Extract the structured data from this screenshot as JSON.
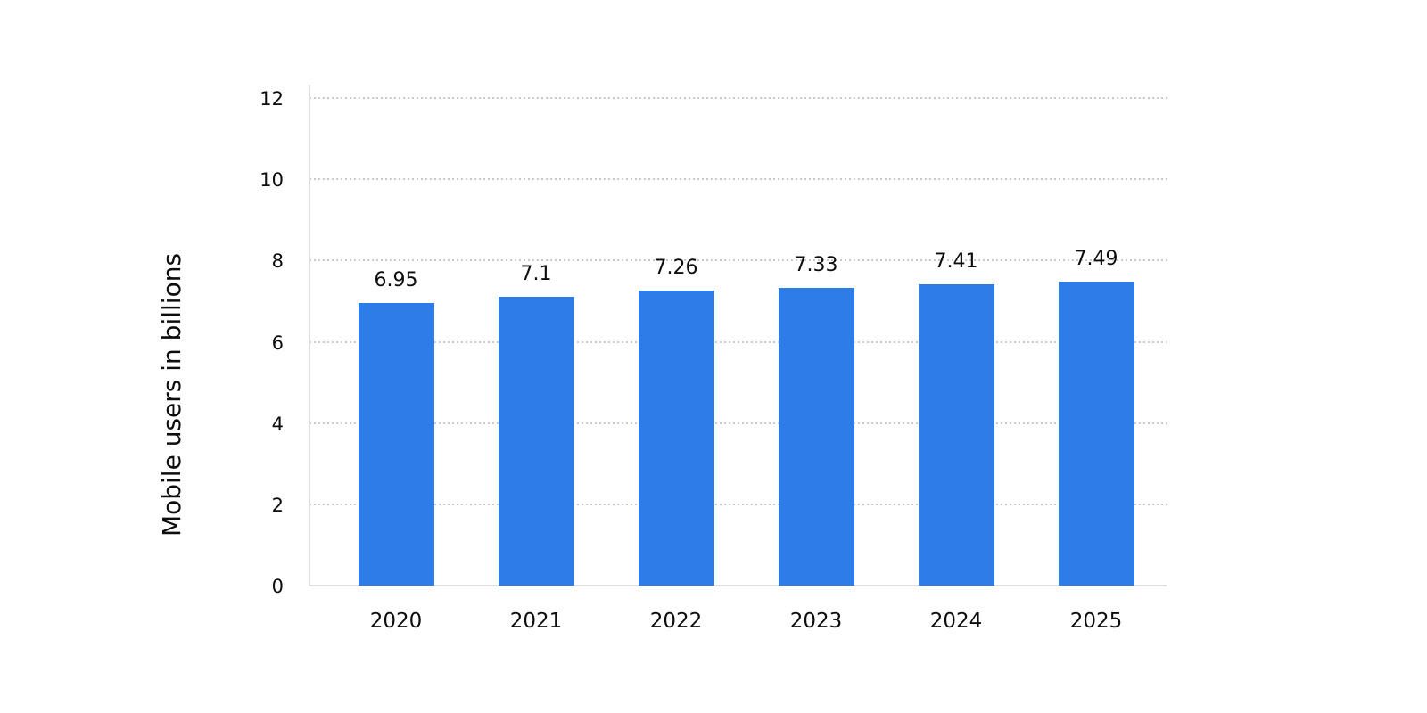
{
  "chart": {
    "background": "#ffffff",
    "text_color": "#0d0d0d",
    "gridline_color": "#c9c9c9",
    "axis_line_color": "#e0e0e0"
  },
  "chart_data": {
    "type": "bar",
    "title": "",
    "xlabel": "",
    "ylabel": "Mobile users in billions",
    "categories": [
      "2020",
      "2021",
      "2022",
      "2023",
      "2024",
      "2025"
    ],
    "values": [
      6.95,
      7.1,
      7.26,
      7.33,
      7.41,
      7.49
    ],
    "value_labels": [
      "6.95",
      "7.1",
      "7.26",
      "7.33",
      "7.41",
      "7.49"
    ],
    "ylim": [
      0,
      12
    ],
    "yticks": [
      0,
      2,
      4,
      6,
      8,
      10,
      12
    ],
    "grid": "horizontal-dotted",
    "legend": "none",
    "bar_color": "#2d7ce8"
  }
}
